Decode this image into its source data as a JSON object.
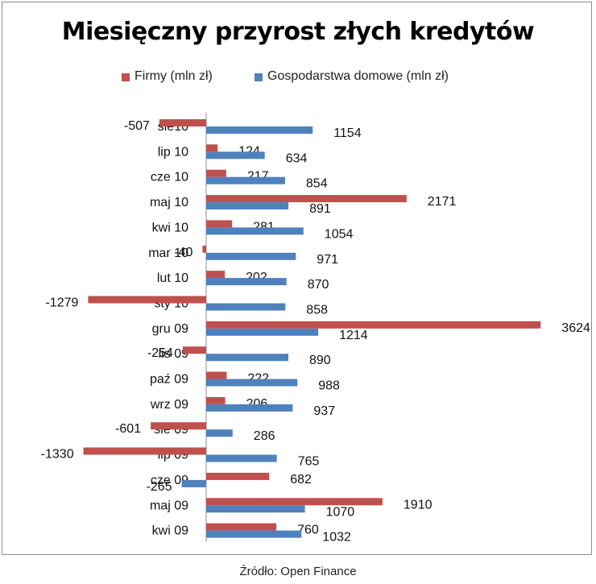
{
  "title": "Miesięczny przyrost złych kredytów",
  "source": "Źródło: Open Finance",
  "colors": {
    "firmy": "#c0504d",
    "gospodarstwa": "#4f81bd"
  },
  "chart_data": {
    "type": "bar",
    "orientation": "horizontal",
    "title": "Miesięczny przyrost złych kredytów",
    "legend": "top",
    "grid": false,
    "xlim": [
      -2000,
      4000
    ],
    "categories": [
      "sie10",
      "lip 10",
      "cze 10",
      "maj 10",
      "kwi 10",
      "mar 10",
      "lut 10",
      "sty 10",
      "gru 09",
      "lis 09",
      "paź 09",
      "wrz 09",
      "sie 09",
      "lip 09",
      "cze 09",
      "maj 09",
      "kwi 09"
    ],
    "series": [
      {
        "name": "Firmy (mln zł)",
        "color": "#c0504d",
        "values": [
          -507,
          124,
          217,
          2171,
          281,
          -40,
          202,
          -1279,
          3624,
          -254,
          222,
          206,
          -601,
          -1330,
          682,
          1910,
          760
        ]
      },
      {
        "name": "Gospodarstwa domowe (mln zł)",
        "color": "#4f81bd",
        "values": [
          1154,
          634,
          854,
          891,
          1054,
          971,
          870,
          858,
          1214,
          890,
          988,
          937,
          286,
          765,
          -265,
          1070,
          1032
        ]
      }
    ]
  }
}
